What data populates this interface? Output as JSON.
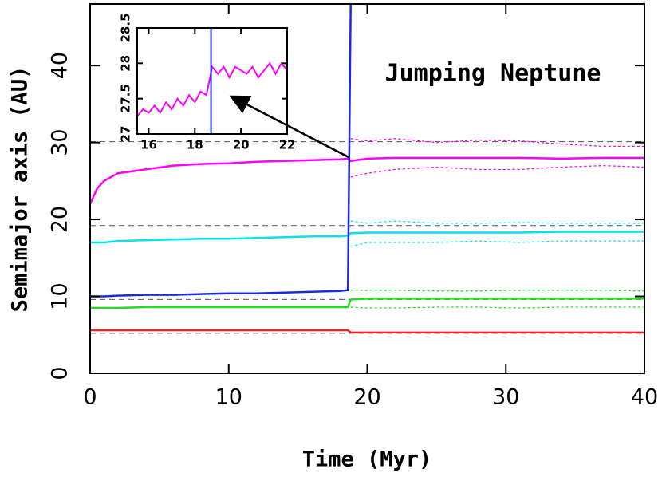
{
  "chart_data": [
    {
      "type": "line",
      "xlabel": "Time (Myr)",
      "ylabel": "Semimajor axis (AU)",
      "annotation": "Jumping Neptune",
      "x": [
        0,
        0.5,
        1,
        2,
        4,
        6,
        8,
        10,
        12,
        14,
        16,
        18,
        18.6,
        18.8,
        20,
        22,
        25,
        28,
        31,
        34,
        37,
        40
      ],
      "series": [
        {
          "color": "#ff00ff",
          "values": [
            22,
            24,
            25,
            26,
            26.5,
            27,
            27.2,
            27.3,
            27.5,
            27.6,
            27.7,
            27.8,
            27.9,
            27.6,
            27.9,
            28,
            28,
            28,
            28,
            27.9,
            28,
            28
          ]
        },
        {
          "color": "#00e5ee",
          "values": [
            17,
            17,
            17,
            17.2,
            17.3,
            17.4,
            17.5,
            17.5,
            17.6,
            17.7,
            17.8,
            17.8,
            17.9,
            18.2,
            18.3,
            18.3,
            18.3,
            18.3,
            18.3,
            18.4,
            18.4,
            18.4
          ]
        },
        {
          "color": "#1a2bdd",
          "values": [
            10,
            10,
            10,
            10.1,
            10.2,
            10.2,
            10.3,
            10.4,
            10.4,
            10.5,
            10.6,
            10.7,
            10.8,
            48,
            null,
            null,
            null,
            null,
            null,
            null,
            null,
            null
          ]
        },
        {
          "color": "#22dd22",
          "values": [
            8.5,
            8.5,
            8.5,
            8.5,
            8.6,
            8.6,
            8.6,
            8.6,
            8.6,
            8.6,
            8.6,
            8.6,
            8.6,
            9.6,
            9.7,
            9.7,
            9.7,
            9.7,
            9.7,
            9.7,
            9.7,
            9.7
          ]
        },
        {
          "color": "#ee2222",
          "values": [
            5.6,
            5.6,
            5.6,
            5.6,
            5.6,
            5.6,
            5.6,
            5.6,
            5.6,
            5.6,
            5.6,
            5.6,
            5.6,
            5.3,
            5.3,
            5.3,
            5.3,
            5.3,
            5.3,
            5.3,
            5.3,
            5.3
          ]
        },
        {
          "color": "#ff00ff",
          "dash": true,
          "values": [
            null,
            null,
            null,
            null,
            null,
            null,
            null,
            null,
            null,
            null,
            null,
            null,
            null,
            30.5,
            30.2,
            30.5,
            30,
            30.3,
            30.2,
            29.8,
            29.5,
            29.5
          ]
        },
        {
          "color": "#ff00ff",
          "dash": true,
          "values": [
            null,
            null,
            null,
            null,
            null,
            null,
            null,
            null,
            null,
            null,
            null,
            null,
            null,
            25.5,
            26,
            26.5,
            26.8,
            26.5,
            26.5,
            26.8,
            27,
            26.8
          ]
        },
        {
          "color": "#00e5ee",
          "dash": true,
          "values": [
            null,
            null,
            null,
            null,
            null,
            null,
            null,
            null,
            null,
            null,
            null,
            null,
            null,
            19.8,
            19.5,
            19.8,
            19.5,
            19.5,
            19.6,
            19.5,
            19.5,
            19.5
          ]
        },
        {
          "color": "#00e5ee",
          "dash": true,
          "values": [
            null,
            null,
            null,
            null,
            null,
            null,
            null,
            null,
            null,
            null,
            null,
            null,
            null,
            16.5,
            17,
            17,
            17,
            17.2,
            17,
            17.2,
            17.2,
            17.2
          ]
        },
        {
          "color": "#22dd22",
          "dash": true,
          "values": [
            null,
            null,
            null,
            null,
            null,
            null,
            null,
            null,
            null,
            null,
            null,
            null,
            null,
            10.8,
            10.8,
            10.8,
            10.7,
            10.7,
            10.8,
            10.8,
            10.8,
            10.7
          ]
        },
        {
          "color": "#22dd22",
          "dash": true,
          "values": [
            null,
            null,
            null,
            null,
            null,
            null,
            null,
            null,
            null,
            null,
            null,
            null,
            null,
            8.6,
            8.5,
            8.5,
            8.6,
            8.6,
            8.5,
            8.6,
            8.6,
            8.6
          ]
        }
      ],
      "reference_lines": [
        30.1,
        19.2,
        9.6,
        5.2
      ],
      "xlim": [
        0,
        40
      ],
      "ylim": [
        0,
        48
      ],
      "xticks": [
        0,
        10,
        20,
        30,
        40
      ],
      "yticks": [
        0,
        10,
        20,
        30,
        40
      ]
    },
    {
      "type": "line",
      "x": [
        15.5,
        15.75,
        16,
        16.25,
        16.5,
        16.75,
        17,
        17.25,
        17.5,
        17.75,
        18,
        18.25,
        18.5,
        18.75,
        19,
        19.25,
        19.5,
        19.75,
        20,
        20.25,
        20.5,
        20.75,
        21,
        21.25,
        21.5,
        21.75,
        22
      ],
      "series": [
        {
          "color": "#ff00ff",
          "values": [
            27.25,
            27.35,
            27.3,
            27.4,
            27.3,
            27.45,
            27.35,
            27.5,
            27.4,
            27.55,
            27.45,
            27.6,
            27.55,
            27.95,
            27.85,
            27.95,
            27.8,
            27.95,
            27.9,
            27.85,
            27.95,
            27.8,
            27.9,
            28.0,
            27.85,
            28.0,
            27.9
          ]
        }
      ],
      "event_x": 18.7,
      "event_color": "#1a2bdd",
      "xlim": [
        15.5,
        22
      ],
      "ylim": [
        27,
        28.5
      ],
      "xticks": [
        16,
        18,
        20,
        22
      ],
      "yticks": [
        27,
        27.5,
        28,
        28.5
      ]
    }
  ]
}
